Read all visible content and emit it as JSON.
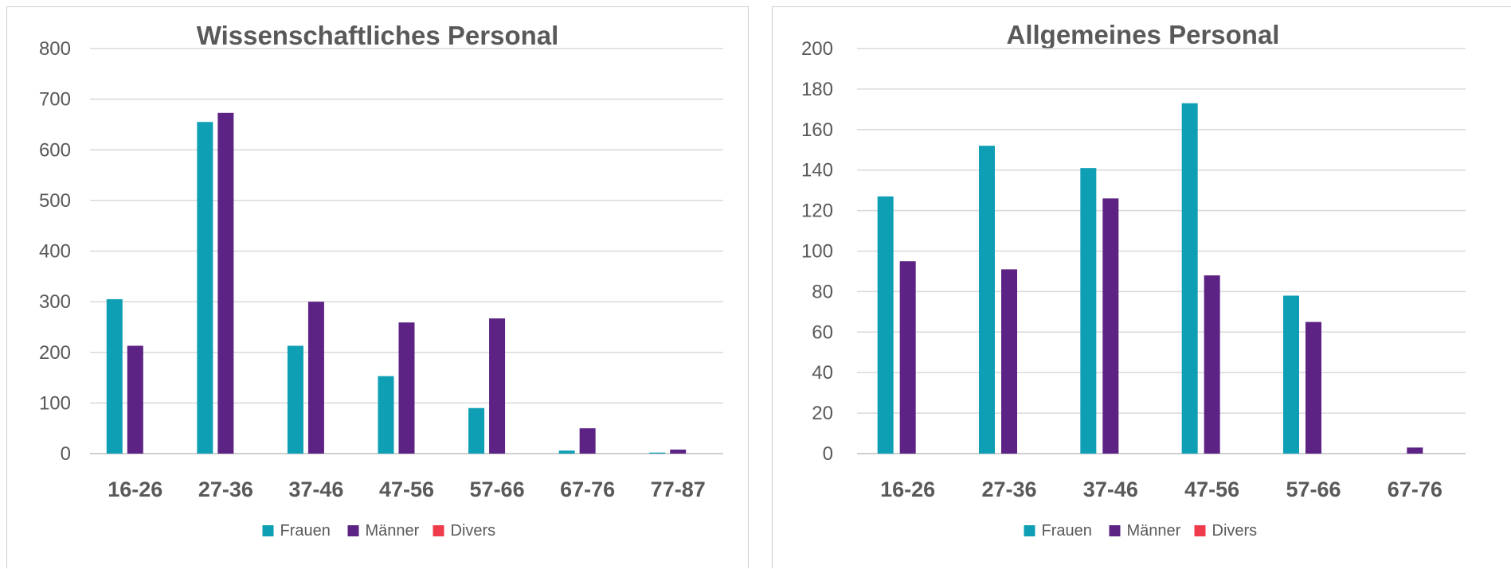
{
  "colors": {
    "frauen": "#0e9fb4",
    "maenner": "#5c2384",
    "divers": "#ef3b4b"
  },
  "chart_data": [
    {
      "type": "bar",
      "title": "Wissenschaftliches Personal",
      "categories": [
        "16-26",
        "27-36",
        "37-46",
        "47-56",
        "57-66",
        "67-76",
        "77-87"
      ],
      "series": [
        {
          "name": "Frauen",
          "values": [
            305,
            655,
            213,
            153,
            90,
            6,
            2
          ]
        },
        {
          "name": "Männer",
          "values": [
            213,
            673,
            300,
            259,
            267,
            50,
            8
          ]
        },
        {
          "name": "Divers",
          "values": [
            0,
            0,
            0,
            0,
            0,
            0,
            0
          ]
        }
      ],
      "ylim": [
        0,
        800
      ],
      "yticks": [
        "0",
        "100",
        "200",
        "300",
        "400",
        "500",
        "600",
        "700",
        "800"
      ],
      "xlabel": "",
      "ylabel": "",
      "grid": true,
      "legend": "bottom-center"
    },
    {
      "type": "bar",
      "title": "Allgemeines Personal",
      "categories": [
        "16-26",
        "27-36",
        "37-46",
        "47-56",
        "57-66",
        "67-76"
      ],
      "series": [
        {
          "name": "Frauen",
          "values": [
            127,
            152,
            141,
            173,
            78,
            0
          ]
        },
        {
          "name": "Männer",
          "values": [
            95,
            91,
            126,
            88,
            65,
            3
          ]
        },
        {
          "name": "Divers",
          "values": [
            0,
            0,
            0,
            0,
            0,
            0
          ]
        }
      ],
      "ylim": [
        0,
        200
      ],
      "yticks": [
        "0",
        "20",
        "40",
        "60",
        "80",
        "100",
        "120",
        "140",
        "160",
        "180",
        "200"
      ],
      "xlabel": "",
      "ylabel": "",
      "grid": true,
      "legend": "bottom-center"
    }
  ]
}
